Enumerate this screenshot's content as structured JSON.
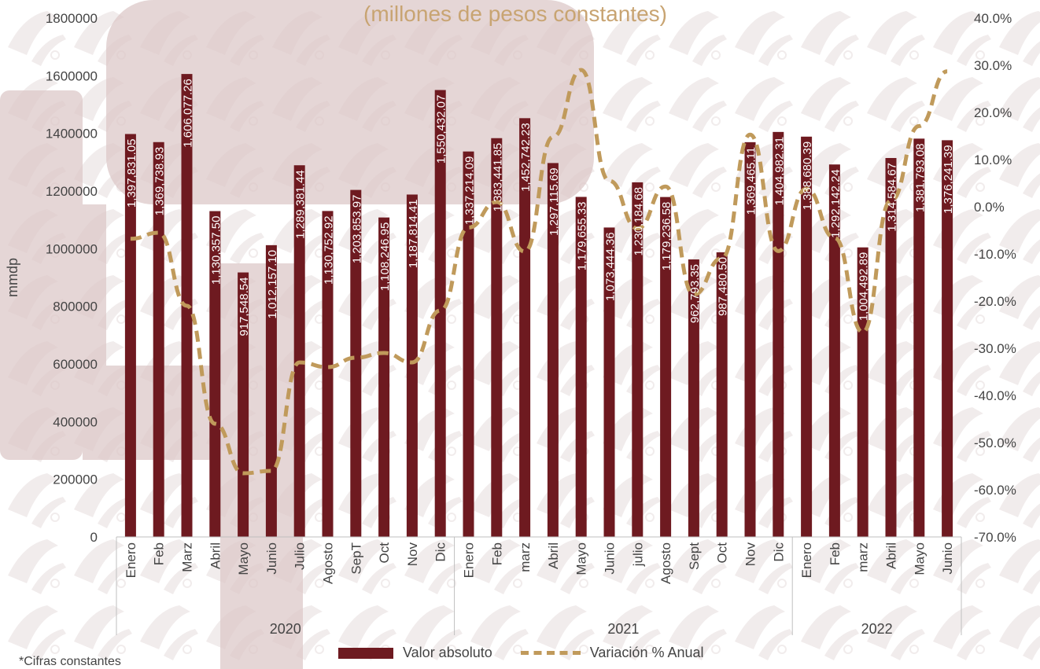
{
  "chart_data": {
    "type": "bar",
    "title": "(millones de pesos constantes)",
    "ylabel": "mmdp",
    "ylim": [
      0,
      1800000
    ],
    "y2lim": [
      -70,
      40
    ],
    "yticks": [
      "1800000",
      "1600000",
      "1400000",
      "1200000",
      "1000000",
      "800000",
      "600000",
      "400000",
      "200000",
      "0"
    ],
    "y2ticks": [
      "40.0%",
      "30.0%",
      "20.0%",
      "10.0%",
      "0.0%",
      "-10.0%",
      "-20.0%",
      "-30.0%",
      "-40.0%",
      "-50.0%",
      "-60.0%",
      "-70.0%"
    ],
    "categories": [
      "Enero",
      "Feb",
      "Marz",
      "Abril",
      "Mayo",
      "Junio",
      "Julio",
      "Agosto",
      "SepT",
      "Oct",
      "Nov",
      "Dic",
      "Enero",
      "Feb",
      "marz",
      "Abril",
      "Mayo",
      "Junio",
      "julio",
      "Agosto",
      "Sept",
      "Oct",
      "Nov",
      "Dic",
      "Enero",
      "Feb",
      "marz",
      "Abril",
      "Mayo",
      "Junio"
    ],
    "groups": [
      {
        "label": "2020",
        "count": 12
      },
      {
        "label": "2021",
        "count": 12
      },
      {
        "label": "2022",
        "count": 6
      }
    ],
    "series": [
      {
        "name": "Valor absoluto",
        "kind": "bar",
        "color": "#6e1a20",
        "values": [
          1397831.05,
          1369738.93,
          1606077.26,
          1130357.5,
          917548.54,
          1012157.1,
          1289381.44,
          1130752.92,
          1203853.97,
          1108246.95,
          1187814.41,
          1550432.07,
          1337214.09,
          1383441.85,
          1452742.23,
          1297115.69,
          1179655.33,
          1073444.36,
          1230184.68,
          1179236.58,
          962793.35,
          987480.5,
          1369465.11,
          1404982.31,
          1388680.39,
          1292142.24,
          1004492.89,
          1314584.67,
          1381793.08,
          1376241.39
        ],
        "labels": [
          "1,397,831.05",
          "1,369,738.93",
          "1,606,077.26",
          "1,130,357.50",
          "917,548.54",
          "1,012,157.10",
          "1,289,381.44",
          "1,130,752.92",
          "1,203,853.97",
          "1,108,246.95",
          "1,187,814.41",
          "1,550,432.07",
          "1,337,214.09",
          "1,383,441.85",
          "1,452,742.23",
          "1,297,115.69",
          "1,179,655.33",
          "1,073,444.36",
          "1,230,184.68",
          "1,179,236.58",
          "962,793.35",
          "987,480.50",
          "1,369,465.11",
          "1,404,982.31",
          "1,388,680.39",
          "1,292,142.24",
          "1,004,492.89",
          "1,314,584.67",
          "1,381,793.08",
          "1,376,241.39"
        ]
      },
      {
        "name": "Variación % Anual",
        "kind": "line",
        "color": "#c09a5b",
        "axis": "right",
        "values": [
          -6.8,
          -5.5,
          -21,
          -46,
          -56.5,
          -56,
          -33,
          -34,
          -32,
          -31,
          -33,
          -22,
          -4.4,
          1.0,
          -9.5,
          14.8,
          29.0,
          5.5,
          -4.6,
          4.3,
          -18.6,
          -10.9,
          15.3,
          -9.4,
          3.8,
          -6.6,
          -26.6,
          1.3,
          17.1,
          28.7
        ]
      }
    ],
    "legend_position": "bottom",
    "grid": false,
    "footnote": "*Cifras constantes"
  }
}
